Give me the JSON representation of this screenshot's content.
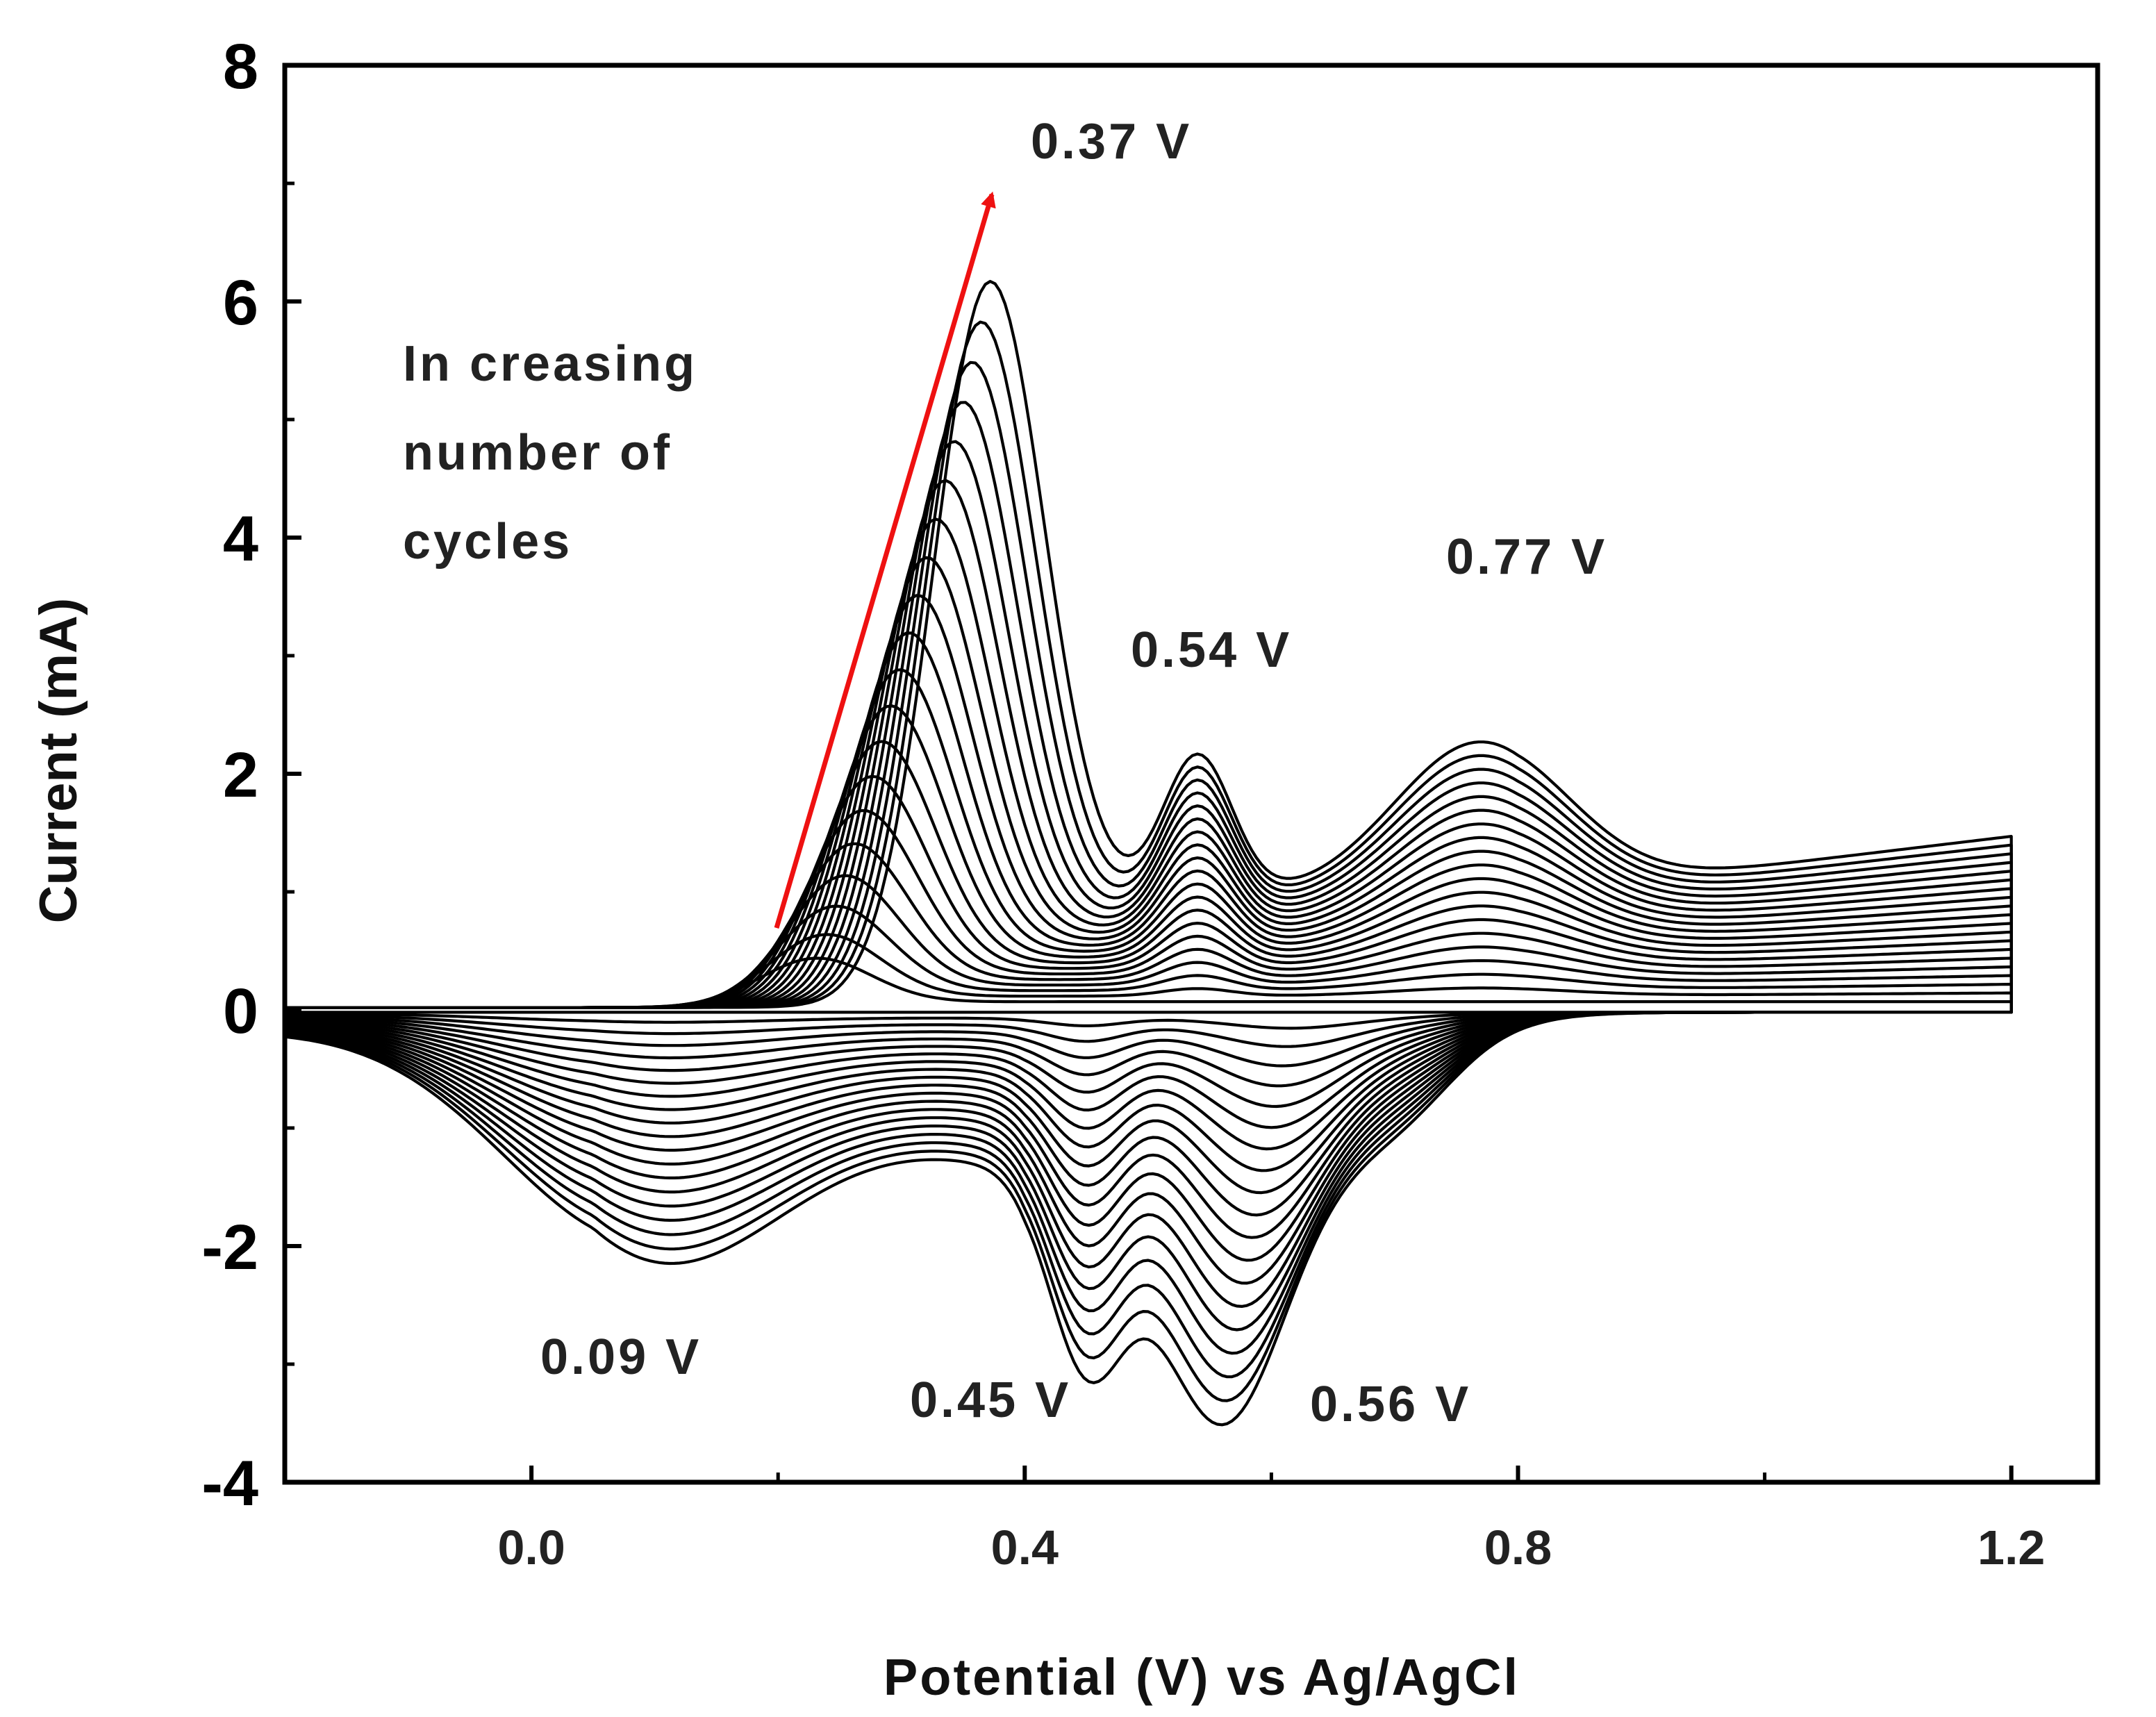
{
  "chart_data": {
    "type": "line",
    "subtype": "cyclic voltammogram (multi-cycle)",
    "title": "",
    "xlabel": "Potential (V) vs Ag/AgCl",
    "ylabel": "Current (mA)",
    "xlim": [
      -0.2,
      1.27
    ],
    "ylim": [
      -4,
      8
    ],
    "x_ticks": [
      0.0,
      0.4,
      0.8,
      1.2
    ],
    "x_tick_labels": [
      "0.0",
      "0.4",
      "0.8",
      "1.2"
    ],
    "y_ticks": [
      -4,
      -2,
      0,
      2,
      4,
      6,
      8
    ],
    "y_tick_labels": [
      "-4",
      "-2",
      "0",
      "2",
      "4",
      "6",
      "8"
    ],
    "grid": false,
    "legend": "none",
    "cycles": 20,
    "scan_range_V": [
      -0.2,
      1.2
    ],
    "first_cycle": {
      "anodic_peak": {
        "potential_V": 0.23,
        "current_mA": 0.4
      },
      "cathodic_current_at_start_mA": -0.2
    },
    "last_cycle": {
      "oxidation_peaks": [
        {
          "potential_V": 0.37,
          "current_mA": 6.7
        },
        {
          "potential_V": 0.54,
          "current_mA": 2.3
        },
        {
          "potential_V": 0.77,
          "current_mA": 2.6
        }
      ],
      "reduction_peaks": [
        {
          "potential_V": 0.09,
          "current_mA": -2.4
        },
        {
          "potential_V": 0.45,
          "current_mA": -2.6
        },
        {
          "potential_V": 0.56,
          "current_mA": -3.5
        }
      ],
      "current_at_1_2V_mA": 1.4,
      "current_at_minus_0_2V_mA": -0.65
    },
    "annotations": {
      "arrow_text": "Increasing number of cycles",
      "arrow_lines": [
        "In creasing",
        "number of",
        "cycles"
      ],
      "arrow_color": "#ee1111",
      "peak_labels": [
        "0.37 V",
        "0.54 V",
        "0.77 V",
        "0.09 V",
        "0.45 V",
        "0.56 V"
      ]
    }
  }
}
